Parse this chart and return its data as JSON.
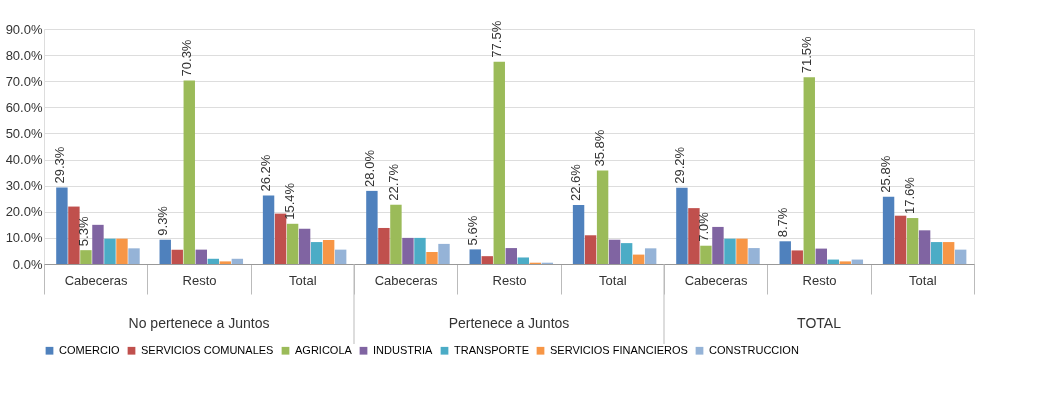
{
  "chart_data": {
    "type": "bar",
    "categories": [
      "Cabeceras",
      "Resto",
      "Total",
      "Cabeceras",
      "Resto",
      "Total",
      "Cabeceras",
      "Resto",
      "Total"
    ],
    "annotations": [
      "No pertenece a Juntos",
      "Pertenece a Juntos",
      "TOTAL"
    ],
    "series": [
      {
        "name": "COMERCIO",
        "color": "#4f81bd",
        "values": [
          29.3,
          9.3,
          26.2,
          28.0,
          5.6,
          22.6,
          29.2,
          8.7,
          25.8
        ],
        "value_labels": [
          "29.3%",
          "9.3%",
          "26.2%",
          "28.0%",
          "5.6%",
          "22.6%",
          "29.2%",
          "8.7%",
          "25.8%"
        ]
      },
      {
        "name": "SERVICIOS COMUNALES",
        "color": "#c0504d",
        "values": [
          22,
          5.5,
          19.3,
          13.8,
          3,
          11,
          21.4,
          5.2,
          18.5
        ]
      },
      {
        "name": "AGRICOLA",
        "color": "#9bbb59",
        "values": [
          5.3,
          70.3,
          15.4,
          22.7,
          77.5,
          35.8,
          7.0,
          71.5,
          17.6
        ],
        "value_labels": [
          "5.3%",
          "70.3%",
          "15.4%",
          "22.7%",
          "77.5%",
          "35.8%",
          "7.0%",
          "71.5%",
          "17.6%"
        ]
      },
      {
        "name": "INDUSTRIA",
        "color": "#8064a2",
        "values": [
          15,
          5.5,
          13.5,
          10,
          6.1,
          9.3,
          14.2,
          5.9,
          12.9
        ]
      },
      {
        "name": "TRANSPORTE",
        "color": "#4bacc6",
        "values": [
          9.7,
          2,
          8.4,
          10,
          2.5,
          8,
          9.7,
          1.7,
          8.4
        ]
      },
      {
        "name": "SERVICIOS FINANCIEROS",
        "color": "#f79646",
        "values": [
          9.7,
          1,
          9.2,
          4.6,
          0.5,
          3.6,
          9.7,
          1,
          8.4
        ]
      },
      {
        "name": "CONSTRUCCION",
        "color": "#95b3d7",
        "values": [
          6,
          2,
          5.5,
          7.7,
          0.5,
          6,
          6.1,
          1.7,
          5.5
        ]
      }
    ],
    "ylim": [
      0,
      90
    ],
    "yticks": [
      {
        "value": 0,
        "label": "0.0%"
      },
      {
        "value": 10,
        "label": "10.0%"
      },
      {
        "value": 20,
        "label": "20.0%"
      },
      {
        "value": 30,
        "label": "30.0%"
      },
      {
        "value": 40,
        "label": "40.0%"
      },
      {
        "value": 50,
        "label": "50.0%"
      },
      {
        "value": 60,
        "label": "60.0%"
      },
      {
        "value": 70,
        "label": "70.0%"
      },
      {
        "value": 80,
        "label": "80.0%"
      },
      {
        "value": 90,
        "label": "90.0%"
      }
    ],
    "grid": "y",
    "legend": "bottom"
  }
}
